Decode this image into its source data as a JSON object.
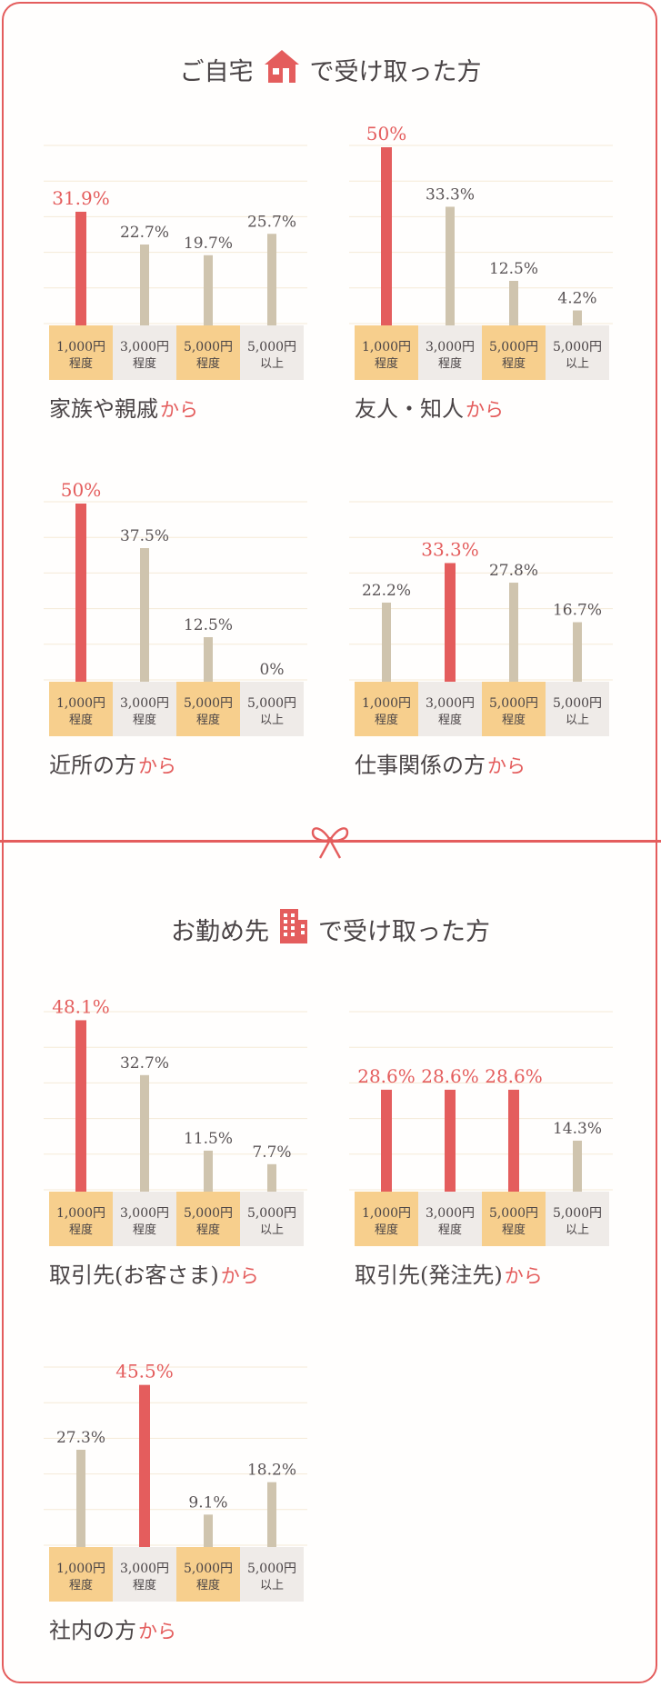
{
  "colors": {
    "accent": "#e45d5d",
    "bar": "#cfc4ae",
    "cell_orange": "#f7cf8d",
    "cell_gray": "#efebe8",
    "text": "#5a5456",
    "grid": "#f5ead7"
  },
  "categories": [
    {
      "line1": "1,000円",
      "line2": "程度"
    },
    {
      "line1": "3,000円",
      "line2": "程度"
    },
    {
      "line1": "5,000円",
      "line2": "程度"
    },
    {
      "line1": "5,000円",
      "line2": "以上"
    }
  ],
  "home_section": {
    "title_pre": "ご自宅",
    "title_post": "で受け取った方",
    "icon": "house-icon"
  },
  "work_section": {
    "title_pre": "お勤め先",
    "title_post": "で受け取った方",
    "icon": "building-icon"
  },
  "divider_icon": "ribbon-bow-icon",
  "label_suffix": "から",
  "chart_data": [
    {
      "type": "bar",
      "label": "家族や親戚",
      "values": [
        31.9,
        22.7,
        19.7,
        25.7
      ],
      "labels": [
        "31.9%",
        "22.7%",
        "19.7%",
        "25.7%"
      ],
      "highlight": [
        0
      ],
      "ylim": [
        0,
        50
      ]
    },
    {
      "type": "bar",
      "label": "友人・知人",
      "values": [
        50,
        33.3,
        12.5,
        4.2
      ],
      "labels": [
        "50%",
        "33.3%",
        "12.5%",
        "4.2%"
      ],
      "highlight": [
        0
      ],
      "ylim": [
        0,
        50
      ]
    },
    {
      "type": "bar",
      "label": "近所の方",
      "values": [
        50,
        37.5,
        12.5,
        0
      ],
      "labels": [
        "50%",
        "37.5%",
        "12.5%",
        "0%"
      ],
      "highlight": [
        0
      ],
      "ylim": [
        0,
        50
      ]
    },
    {
      "type": "bar",
      "label": "仕事関係の方",
      "values": [
        22.2,
        33.3,
        27.8,
        16.7
      ],
      "labels": [
        "22.2%",
        "33.3%",
        "27.8%",
        "16.7%"
      ],
      "highlight": [
        1
      ],
      "ylim": [
        0,
        50
      ]
    },
    {
      "type": "bar",
      "label": "取引先(お客さま)",
      "values": [
        48.1,
        32.7,
        11.5,
        7.7
      ],
      "labels": [
        "48.1%",
        "32.7%",
        "11.5%",
        "7.7%"
      ],
      "highlight": [
        0
      ],
      "ylim": [
        0,
        50
      ]
    },
    {
      "type": "bar",
      "label": "取引先(発注先)",
      "values": [
        28.6,
        28.6,
        28.6,
        14.3
      ],
      "labels": [
        "28.6%",
        "28.6%",
        "28.6%",
        "14.3%"
      ],
      "highlight": [
        0,
        1,
        2
      ],
      "ylim": [
        0,
        50
      ]
    },
    {
      "type": "bar",
      "label": "社内の方",
      "values": [
        27.3,
        45.5,
        9.1,
        18.2
      ],
      "labels": [
        "27.3%",
        "45.5%",
        "9.1%",
        "18.2%"
      ],
      "highlight": [
        1
      ],
      "ylim": [
        0,
        50
      ]
    }
  ]
}
